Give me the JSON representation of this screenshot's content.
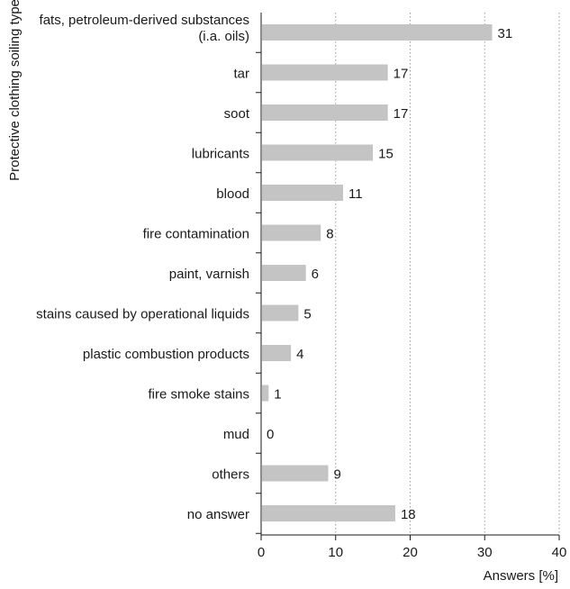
{
  "chart_data": {
    "type": "bar",
    "orientation": "horizontal",
    "categories": [
      [
        "fats, petroleum-derived substances",
        "(i.a. oils)"
      ],
      [
        "tar"
      ],
      [
        "soot"
      ],
      [
        "lubricants"
      ],
      [
        "blood"
      ],
      [
        "fire contamination"
      ],
      [
        "paint, varnish"
      ],
      [
        "stains caused by operational liquids"
      ],
      [
        "plastic combustion products"
      ],
      [
        "fire smoke stains"
      ],
      [
        "mud"
      ],
      [
        "others"
      ],
      [
        "no answer"
      ]
    ],
    "values": [
      31,
      17,
      17,
      15,
      11,
      8,
      6,
      5,
      4,
      1,
      0,
      9,
      18
    ],
    "value_labels": [
      "31",
      "17",
      "17",
      "15",
      "11",
      "8",
      "6",
      "5",
      "4",
      "1",
      "0",
      "9",
      "18"
    ],
    "xlabel": "Answers [%]",
    "ylabel": "Protective clothing soiling type",
    "xlim": [
      0,
      40
    ],
    "xticks": [
      0,
      10,
      20,
      30,
      40
    ],
    "xtick_labels": [
      "0",
      "10",
      "20",
      "30",
      "40"
    ],
    "grid": "vertical dotted",
    "bar_color": "#c4c4c4"
  }
}
